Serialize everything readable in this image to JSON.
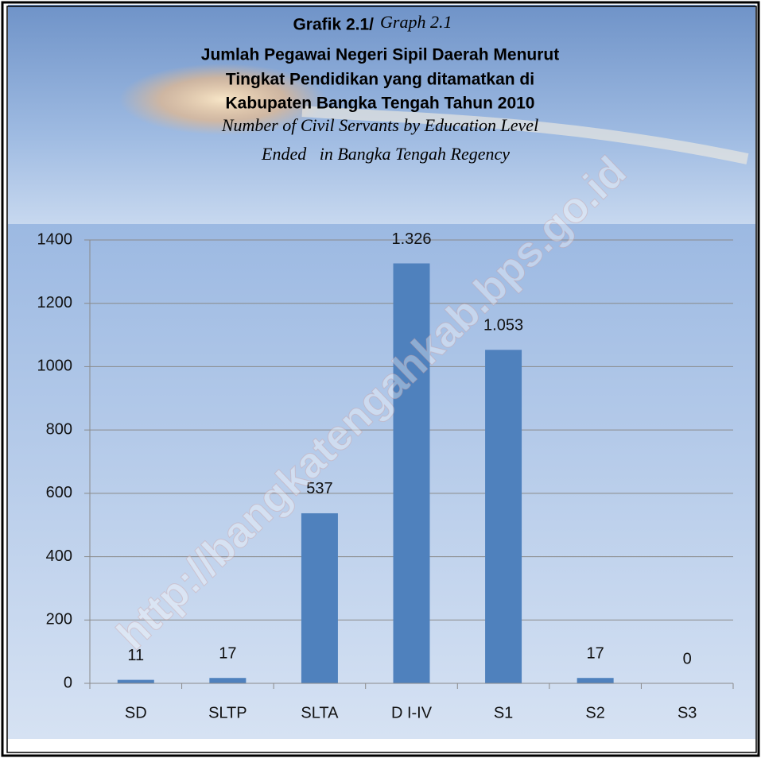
{
  "chart_data": {
    "type": "bar",
    "graph_label": "Grafik 2.1/",
    "graph_label_en": "Graph 2.1",
    "title": [
      "Jumlah Pegawai Negeri Sipil Daerah Menurut",
      "Tingkat Pendidikan yang ditamatkan di",
      "Kabupaten Bangka Tengah Tahun 2010"
    ],
    "subtitle": [
      "Number of Civil Servants by Education Level",
      "Ended   in Bangka Tengah Regency"
    ],
    "watermark": "http://bangkatengahkab.bps.go.id",
    "categories": [
      "SD",
      "SLTP",
      "SLTA",
      "D I-IV",
      "S1",
      "S2",
      "S3"
    ],
    "values": [
      11,
      17,
      537,
      1326,
      1053,
      17,
      0
    ],
    "value_labels": [
      "11",
      "17",
      "537",
      "1.326",
      "1.053",
      "17",
      "0"
    ],
    "color": "#4f81bd",
    "ylim": [
      0,
      1400
    ],
    "yticks": [
      0,
      200,
      400,
      600,
      800,
      1000,
      1200,
      1400
    ],
    "grid": true
  }
}
